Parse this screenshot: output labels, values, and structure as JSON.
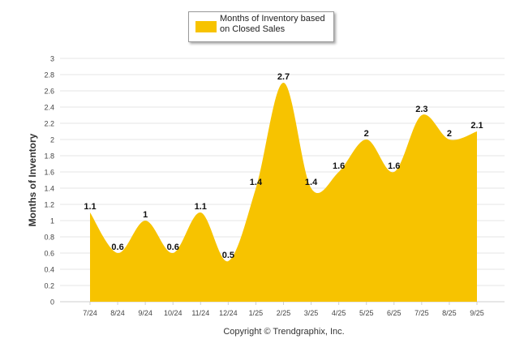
{
  "colors": {
    "fill": "#f7c300",
    "grid": "#e6e6e6",
    "text": "#333333"
  },
  "legend": {
    "label": "Months of Inventory based\non Closed Sales"
  },
  "copyright": "Copyright © Trendgraphix, Inc.",
  "chart_data": {
    "type": "area",
    "ylabel": "Months of Inventory",
    "ylim": [
      0,
      3
    ],
    "yticks": [
      "0",
      "0.2",
      "0.4",
      "0.6",
      "0.8",
      "1",
      "1.2",
      "1.4",
      "1.6",
      "1.8",
      "2",
      "2.2",
      "2.4",
      "2.6",
      "2.8",
      "3"
    ],
    "categories": [
      "7/24",
      "8/24",
      "9/24",
      "10/24",
      "11/24",
      "12/24",
      "1/25",
      "2/25",
      "3/25",
      "4/25",
      "5/25",
      "6/25",
      "7/25",
      "8/25",
      "9/25"
    ],
    "series": [
      {
        "name": "Months of Inventory based on Closed Sales",
        "values": [
          1.1,
          0.6,
          1,
          0.6,
          1.1,
          0.5,
          1.4,
          2.7,
          1.4,
          1.6,
          2,
          1.6,
          2.3,
          2,
          2.1
        ],
        "labels": [
          "1.1",
          "0.6",
          "1",
          "0.6",
          "1.1",
          "0.5",
          "1.4",
          "2.7",
          "1.4",
          "1.6",
          "2",
          "1.6",
          "2.3",
          "2",
          "2.1"
        ]
      }
    ],
    "grid": true,
    "legend_position": "top-center"
  }
}
